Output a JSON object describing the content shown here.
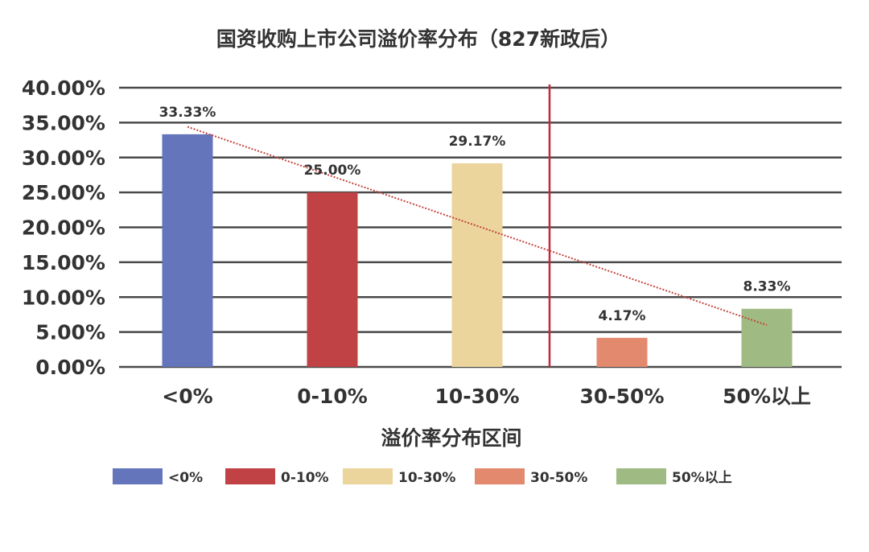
{
  "chart_data": {
    "type": "bar",
    "title": "国资收购上市公司溢价率分布（827新政后）",
    "xlabel": "溢价率分布区间",
    "ylabel": "",
    "categories": [
      "<0%",
      "0-10%",
      "10-30%",
      "30-50%",
      "50%以上"
    ],
    "values": [
      33.33,
      25.0,
      29.17,
      4.17,
      8.33
    ],
    "value_labels": [
      "33.33%",
      "25.00%",
      "29.17%",
      "4.17%",
      "8.33%"
    ],
    "colors": [
      "#6475bb",
      "#c04244",
      "#ecd59c",
      "#e3896e",
      "#9fbb83"
    ],
    "ylim": [
      0,
      40
    ],
    "y_ticks": [
      0,
      5,
      10,
      15,
      20,
      25,
      30,
      35,
      40
    ],
    "y_tick_labels": [
      "0.00%",
      "5.00%",
      "10.00%",
      "15.00%",
      "20.00%",
      "25.00%",
      "30.00%",
      "35.00%",
      "40.00%"
    ],
    "grid": true,
    "trendline": {
      "type": "linear",
      "style": "dotted",
      "color": "#c4453e",
      "start": {
        "category": "<0%",
        "value": 34.4
      },
      "end": {
        "category": "50%以上",
        "value": 6.0
      }
    },
    "divider": {
      "between": [
        "10-30%",
        "30-50%"
      ],
      "color": "#c5283a"
    },
    "legend": {
      "position": "bottom",
      "entries": [
        "<0%",
        "0-10%",
        "10-30%",
        "30-50%",
        "50%以上"
      ]
    }
  }
}
